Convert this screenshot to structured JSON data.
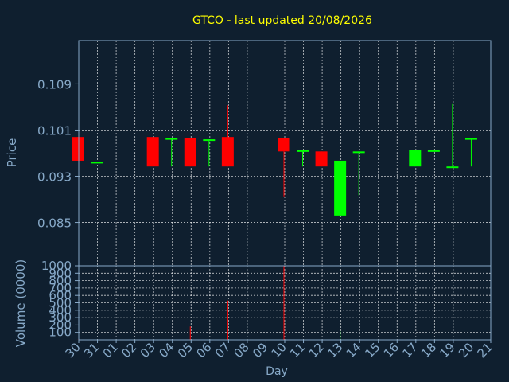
{
  "chart_data": {
    "type": "candlestick",
    "title": "GTCO - last updated 20/08/2026",
    "xlabel": "Day",
    "x_ticks": [
      "30",
      "31",
      "01",
      "02",
      "03",
      "04",
      "05",
      "06",
      "07",
      "08",
      "09",
      "10",
      "11",
      "12",
      "13",
      "14",
      "15",
      "16",
      "17",
      "18",
      "19",
      "20",
      "21"
    ],
    "price_panel": {
      "ylabel": "Price",
      "ylim": [
        0.0775,
        0.1165
      ],
      "y_ticks": [
        0.085,
        0.093,
        0.101,
        0.109
      ],
      "y_tick_labels": [
        "0.085",
        "0.093",
        "0.101",
        "0.109"
      ],
      "grid": true
    },
    "volume_panel": {
      "ylabel": "Volume (0000)",
      "ylim": [
        0,
        1000
      ],
      "y_ticks": [
        100,
        200,
        300,
        400,
        500,
        600,
        700,
        800,
        900,
        1000
      ],
      "y_tick_labels": [
        "100",
        "200",
        "300",
        "400",
        "500",
        "600",
        "700",
        "800",
        "900",
        "1000"
      ],
      "grid": true
    },
    "colors": {
      "up": "#00ff00",
      "down": "#ff0000",
      "background": "#0f1f2f",
      "title": "#ffff00",
      "axis": "#87a9c8"
    },
    "candles": [
      {
        "day": "30",
        "open": 0.0998,
        "high": 0.0998,
        "low": 0.0957,
        "close": 0.0957,
        "volume": 2
      },
      {
        "day": "31",
        "open": 0.0955,
        "high": 0.0955,
        "low": 0.0955,
        "close": 0.0955,
        "volume": 2
      },
      {
        "day": "03",
        "open": 0.0998,
        "high": 0.0998,
        "low": 0.0947,
        "close": 0.0947,
        "volume": 2
      },
      {
        "day": "04",
        "open": 0.0996,
        "high": 0.0996,
        "low": 0.0947,
        "close": 0.0996,
        "volume": 2
      },
      {
        "day": "05",
        "open": 0.0996,
        "high": 0.0996,
        "low": 0.0947,
        "close": 0.0947,
        "volume": 180
      },
      {
        "day": "06",
        "open": 0.0994,
        "high": 0.0994,
        "low": 0.0947,
        "close": 0.0994,
        "volume": 2
      },
      {
        "day": "07",
        "open": 0.0998,
        "high": 0.1053,
        "low": 0.0947,
        "close": 0.0947,
        "volume": 530
      },
      {
        "day": "10",
        "open": 0.0996,
        "high": 0.0996,
        "low": 0.0895,
        "close": 0.0973,
        "volume": 1000
      },
      {
        "day": "11",
        "open": 0.0975,
        "high": 0.0975,
        "low": 0.0947,
        "close": 0.0975,
        "volume": 2
      },
      {
        "day": "12",
        "open": 0.0973,
        "high": 0.0973,
        "low": 0.0947,
        "close": 0.0947,
        "volume": 2
      },
      {
        "day": "13",
        "open": 0.0862,
        "high": 0.0957,
        "low": 0.0862,
        "close": 0.0957,
        "volume": 120
      },
      {
        "day": "14",
        "open": 0.0971,
        "high": 0.0973,
        "low": 0.0897,
        "close": 0.0973,
        "volume": 2
      },
      {
        "day": "17",
        "open": 0.0947,
        "high": 0.0975,
        "low": 0.0947,
        "close": 0.0975,
        "volume": 2
      },
      {
        "day": "18",
        "open": 0.0975,
        "high": 0.0975,
        "low": 0.0975,
        "close": 0.0975,
        "volume": 2
      },
      {
        "day": "19",
        "open": 0.0945,
        "high": 0.1055,
        "low": 0.0945,
        "close": 0.0947,
        "volume": 2
      },
      {
        "day": "20",
        "open": 0.0996,
        "high": 0.0996,
        "low": 0.0947,
        "close": 0.0996,
        "volume": 2
      }
    ]
  }
}
